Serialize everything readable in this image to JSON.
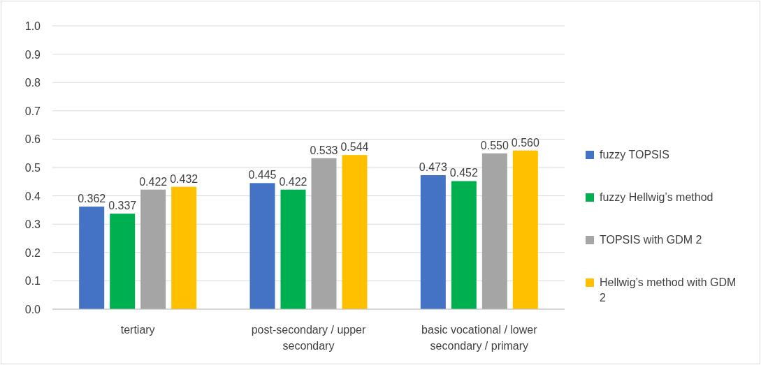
{
  "chart_data": {
    "type": "bar",
    "categories": [
      "tertiary",
      "post-secondary / upper secondary",
      "basic vocational / lower secondary / primary"
    ],
    "series": [
      {
        "name": "fuzzy TOPSIS",
        "color": "#4472c4",
        "values": [
          0.362,
          0.445,
          0.473
        ]
      },
      {
        "name": "fuzzy Hellwig’s method",
        "color": "#00b050",
        "values": [
          0.337,
          0.422,
          0.452
        ]
      },
      {
        "name": "TOPSIS with GDM 2",
        "color": "#a5a5a5",
        "values": [
          0.422,
          0.533,
          0.55
        ]
      },
      {
        "name": "Hellwig’s method with GDM 2",
        "color": "#ffc000",
        "values": [
          0.432,
          0.544,
          0.56
        ]
      }
    ],
    "value_labels": [
      [
        "0.362",
        "0.445",
        "0.473"
      ],
      [
        "0.337",
        "0.422",
        "0.452"
      ],
      [
        "0.422",
        "0.533",
        "0.550"
      ],
      [
        "0.432",
        "0.544",
        "0.560"
      ]
    ],
    "ylim": [
      0,
      1
    ],
    "yticks": [
      {
        "value": 0,
        "label": "0.0"
      },
      {
        "value": 0.1,
        "label": "0.1"
      },
      {
        "value": 0.2,
        "label": "0.2"
      },
      {
        "value": 0.3,
        "label": "0.3"
      },
      {
        "value": 0.4,
        "label": "0.4"
      },
      {
        "value": 0.5,
        "label": "0.5"
      },
      {
        "value": 0.6,
        "label": "0.6"
      },
      {
        "value": 0.7,
        "label": "0.7"
      },
      {
        "value": 0.8,
        "label": "0.8"
      },
      {
        "value": 0.9,
        "label": "0.9"
      },
      {
        "value": 1,
        "label": "1.0"
      }
    ],
    "grid": "y",
    "legend": "right"
  }
}
